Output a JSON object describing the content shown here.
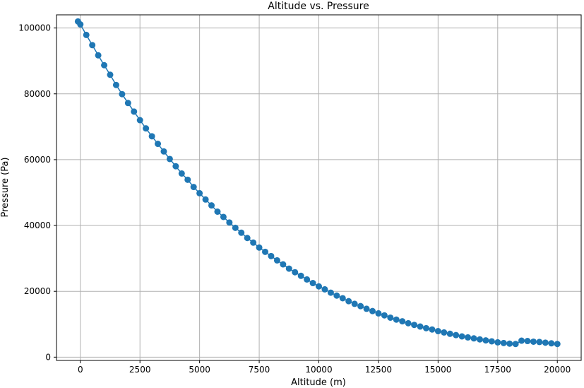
{
  "chart_data": {
    "type": "line",
    "title": "Altitude vs. Pressure",
    "xlabel": "Altitude (m)",
    "ylabel": "Pressure (Pa)",
    "xlim": [
      -1000,
      21000
    ],
    "ylim": [
      -1000,
      104000
    ],
    "xticks": [
      0,
      2500,
      5000,
      7500,
      10000,
      12500,
      15000,
      17500,
      20000
    ],
    "yticks": [
      0,
      20000,
      40000,
      60000,
      80000,
      100000
    ],
    "xtick_labels": [
      "0",
      "2500",
      "5000",
      "7500",
      "10000",
      "12500",
      "15000",
      "17500",
      "20000"
    ],
    "ytick_labels": [
      "0",
      "20000",
      "40000",
      "60000",
      "80000",
      "100000"
    ],
    "grid": true,
    "legend": "none",
    "series": [
      {
        "color": "#1f77b4",
        "marker": "circle",
        "x": [
          -100,
          0,
          250,
          500,
          750,
          1000,
          1250,
          1500,
          1750,
          2000,
          2250,
          2500,
          2750,
          3000,
          3250,
          3500,
          3750,
          4000,
          4250,
          4500,
          4750,
          5000,
          5250,
          5500,
          5750,
          6000,
          6250,
          6500,
          6750,
          7000,
          7250,
          7500,
          7750,
          8000,
          8250,
          8500,
          8750,
          9000,
          9250,
          9500,
          9750,
          10000,
          10250,
          10500,
          10750,
          11000,
          11250,
          11500,
          11750,
          12000,
          12250,
          12500,
          12750,
          13000,
          13250,
          13500,
          13750,
          14000,
          14250,
          14500,
          14750,
          15000,
          15250,
          15500,
          15750,
          16000,
          16250,
          16500,
          16750,
          17000,
          17250,
          17500,
          17750,
          18000,
          18250,
          18500,
          18750,
          19000,
          19250,
          19500,
          19750,
          20000
        ],
        "y": [
          102000,
          101100,
          97900,
          94800,
          91700,
          88700,
          85800,
          82700,
          79900,
          77200,
          74600,
          72000,
          69500,
          67100,
          64800,
          62500,
          60200,
          58000,
          55800,
          53900,
          51700,
          49800,
          47900,
          46100,
          44200,
          42600,
          40900,
          39300,
          37800,
          36200,
          34800,
          33300,
          32000,
          30700,
          29400,
          28200,
          26900,
          25800,
          24700,
          23600,
          22500,
          21500,
          20600,
          19600,
          18700,
          17900,
          17000,
          16200,
          15500,
          14700,
          14000,
          13300,
          12700,
          12000,
          11400,
          10900,
          10300,
          9800,
          9300,
          8800,
          8400,
          7900,
          7500,
          7100,
          6700,
          6300,
          6000,
          5700,
          5400,
          5100,
          4800,
          4500,
          4300,
          4100,
          4000,
          5000,
          4900,
          4700,
          4600,
          4400,
          4200,
          4000
        ]
      }
    ]
  }
}
